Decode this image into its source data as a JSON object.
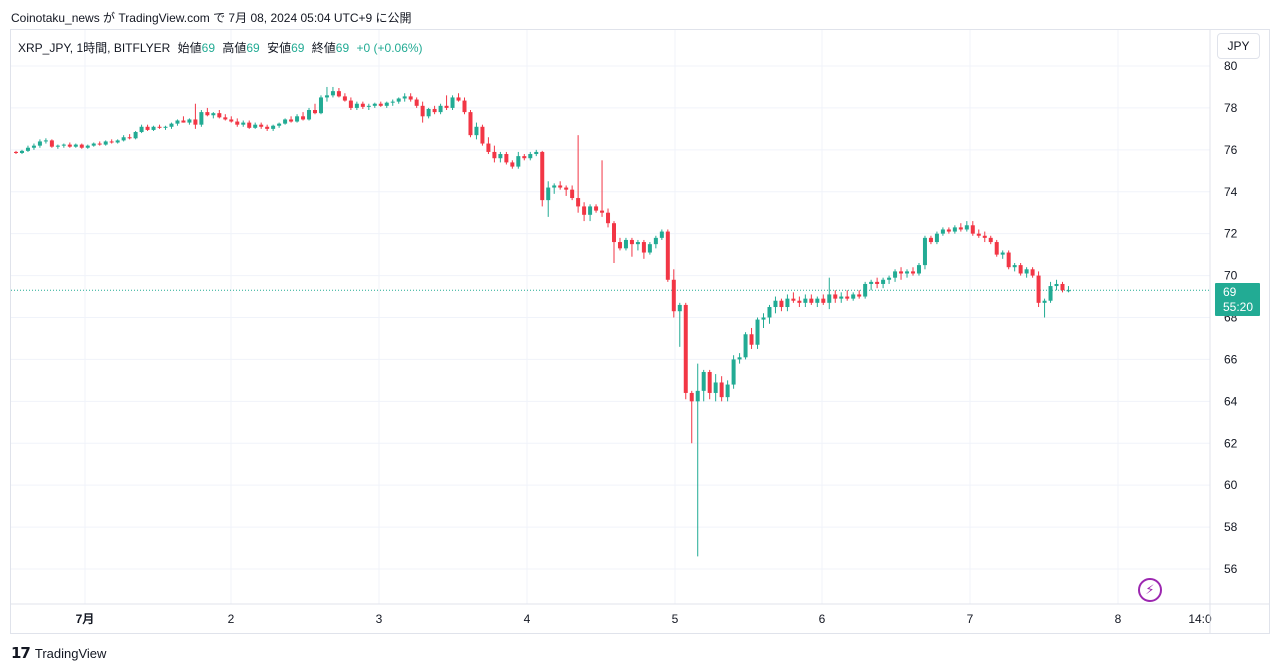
{
  "header": {
    "publish_line": "Coinotaku_news が TradingView.com で 7月 08, 2024 05:04 UTC+9 に公開"
  },
  "legend": {
    "symbol": "XRP_JPY, 1時間, BITFLYER",
    "open_label": "始値",
    "open_value": "69",
    "high_label": "高値",
    "high_value": "69",
    "low_label": "安値",
    "low_value": "69",
    "close_label": "終値",
    "close_value": "69",
    "change": "+0 (+0.06%)"
  },
  "toolbar": {
    "currency": "JPY"
  },
  "price_tag": {
    "price": "69",
    "countdown": "55:20"
  },
  "footer": {
    "brand": "TradingView"
  },
  "colors": {
    "up": "#22ab94",
    "down": "#f23645",
    "grid": "#f0f3fa",
    "price_line": "#22ab94"
  },
  "icons": {
    "bolt": "lightning-icon",
    "logo": "tradingview-logo-icon"
  },
  "chart_data": {
    "type": "candlestick",
    "ylim": [
      55,
      80
    ],
    "y_ticks": [
      "80",
      "78",
      "76",
      "74",
      "72",
      "70",
      "68",
      "66",
      "64",
      "62",
      "60",
      "58",
      "56"
    ],
    "x_tick_labels": [
      "7月",
      "2",
      "3",
      "4",
      "5",
      "6",
      "7",
      "8",
      "14:0"
    ],
    "current_price": 69.3,
    "grid": true,
    "series": [
      {
        "candles": [
          [
            75.9,
            75.95,
            75.8,
            75.85
          ],
          [
            75.85,
            76.0,
            75.8,
            75.95
          ],
          [
            75.95,
            76.2,
            75.9,
            76.1
          ],
          [
            76.1,
            76.3,
            76.0,
            76.2
          ],
          [
            76.2,
            76.5,
            76.1,
            76.4
          ],
          [
            76.4,
            76.55,
            76.3,
            76.45
          ],
          [
            76.45,
            76.5,
            76.1,
            76.15
          ],
          [
            76.15,
            76.25,
            76.05,
            76.2
          ],
          [
            76.2,
            76.3,
            76.1,
            76.25
          ],
          [
            76.25,
            76.35,
            76.1,
            76.15
          ],
          [
            76.15,
            76.3,
            76.1,
            76.25
          ],
          [
            76.25,
            76.3,
            76.05,
            76.1
          ],
          [
            76.1,
            76.25,
            76.05,
            76.2
          ],
          [
            76.2,
            76.35,
            76.15,
            76.3
          ],
          [
            76.3,
            76.4,
            76.2,
            76.25
          ],
          [
            76.25,
            76.45,
            76.2,
            76.4
          ],
          [
            76.4,
            76.5,
            76.3,
            76.35
          ],
          [
            76.35,
            76.5,
            76.3,
            76.45
          ],
          [
            76.45,
            76.7,
            76.4,
            76.6
          ],
          [
            76.6,
            76.75,
            76.5,
            76.55
          ],
          [
            76.55,
            76.9,
            76.5,
            76.85
          ],
          [
            76.85,
            77.2,
            76.8,
            77.1
          ],
          [
            77.1,
            77.2,
            76.9,
            76.95
          ],
          [
            76.95,
            77.15,
            76.9,
            77.1
          ],
          [
            77.1,
            77.2,
            77.0,
            77.05
          ],
          [
            77.05,
            77.15,
            76.95,
            77.1
          ],
          [
            77.1,
            77.3,
            77.0,
            77.25
          ],
          [
            77.25,
            77.45,
            77.15,
            77.4
          ],
          [
            77.4,
            77.6,
            77.3,
            77.3
          ],
          [
            77.3,
            77.5,
            77.2,
            77.45
          ],
          [
            77.45,
            78.2,
            77.0,
            77.2
          ],
          [
            77.2,
            77.9,
            77.1,
            77.8
          ],
          [
            77.8,
            78.0,
            77.6,
            77.65
          ],
          [
            77.65,
            77.8,
            77.5,
            77.75
          ],
          [
            77.75,
            77.9,
            77.5,
            77.55
          ],
          [
            77.55,
            77.7,
            77.4,
            77.45
          ],
          [
            77.45,
            77.6,
            77.3,
            77.35
          ],
          [
            77.35,
            77.5,
            77.1,
            77.2
          ],
          [
            77.2,
            77.4,
            77.1,
            77.3
          ],
          [
            77.3,
            77.4,
            77.0,
            77.05
          ],
          [
            77.05,
            77.3,
            77.0,
            77.2
          ],
          [
            77.2,
            77.3,
            77.0,
            77.1
          ],
          [
            77.1,
            77.2,
            76.9,
            77.0
          ],
          [
            77.0,
            77.2,
            76.9,
            77.15
          ],
          [
            77.15,
            77.3,
            77.05,
            77.25
          ],
          [
            77.25,
            77.5,
            77.2,
            77.45
          ],
          [
            77.45,
            77.6,
            77.3,
            77.35
          ],
          [
            77.35,
            77.7,
            77.3,
            77.6
          ],
          [
            77.6,
            77.8,
            77.4,
            77.45
          ],
          [
            77.45,
            78.0,
            77.4,
            77.9
          ],
          [
            77.9,
            78.2,
            77.7,
            77.75
          ],
          [
            77.75,
            78.6,
            77.7,
            78.5
          ],
          [
            78.5,
            79.0,
            78.3,
            78.6
          ],
          [
            78.6,
            79.0,
            78.5,
            78.8
          ],
          [
            78.8,
            78.95,
            78.5,
            78.55
          ],
          [
            78.55,
            78.7,
            78.3,
            78.35
          ],
          [
            78.35,
            78.5,
            77.9,
            78.0
          ],
          [
            78.0,
            78.3,
            77.9,
            78.2
          ],
          [
            78.2,
            78.3,
            77.95,
            78.05
          ],
          [
            78.05,
            78.2,
            77.9,
            78.1
          ],
          [
            78.1,
            78.25,
            78.0,
            78.2
          ],
          [
            78.2,
            78.3,
            78.05,
            78.1
          ],
          [
            78.1,
            78.3,
            78.0,
            78.25
          ],
          [
            78.25,
            78.4,
            78.1,
            78.3
          ],
          [
            78.3,
            78.5,
            78.2,
            78.45
          ],
          [
            78.45,
            78.7,
            78.3,
            78.55
          ],
          [
            78.55,
            78.7,
            78.3,
            78.4
          ],
          [
            78.4,
            78.5,
            78.0,
            78.1
          ],
          [
            78.1,
            78.3,
            77.3,
            77.6
          ],
          [
            77.6,
            78.0,
            77.5,
            77.95
          ],
          [
            77.95,
            78.1,
            77.7,
            77.8
          ],
          [
            77.8,
            78.2,
            77.7,
            78.1
          ],
          [
            78.1,
            78.6,
            77.9,
            78.0
          ],
          [
            78.0,
            78.6,
            77.9,
            78.5
          ],
          [
            78.5,
            78.7,
            78.3,
            78.35
          ],
          [
            78.35,
            78.5,
            77.7,
            77.8
          ],
          [
            77.8,
            77.9,
            76.6,
            76.7
          ],
          [
            76.7,
            77.3,
            76.5,
            77.1
          ],
          [
            77.1,
            77.2,
            76.2,
            76.3
          ],
          [
            76.3,
            76.6,
            75.8,
            75.9
          ],
          [
            75.9,
            76.2,
            75.4,
            75.6
          ],
          [
            75.6,
            75.9,
            75.4,
            75.8
          ],
          [
            75.8,
            75.9,
            75.3,
            75.4
          ],
          [
            75.4,
            75.5,
            75.1,
            75.2
          ],
          [
            75.2,
            75.9,
            75.1,
            75.7
          ],
          [
            75.7,
            75.8,
            75.5,
            75.6
          ],
          [
            75.6,
            75.9,
            75.5,
            75.8
          ],
          [
            75.8,
            76.0,
            75.7,
            75.9
          ],
          [
            75.9,
            75.95,
            73.3,
            73.6
          ],
          [
            73.6,
            74.5,
            72.8,
            74.2
          ],
          [
            74.2,
            74.4,
            73.9,
            74.3
          ],
          [
            74.3,
            74.5,
            74.1,
            74.2
          ],
          [
            74.2,
            74.3,
            73.8,
            74.1
          ],
          [
            74.1,
            74.3,
            73.6,
            73.7
          ],
          [
            73.7,
            76.7,
            73.0,
            73.3
          ],
          [
            73.3,
            73.5,
            72.6,
            72.9
          ],
          [
            72.9,
            73.4,
            72.6,
            73.3
          ],
          [
            73.3,
            73.4,
            73.0,
            73.1
          ],
          [
            73.1,
            75.5,
            72.8,
            73.0
          ],
          [
            73.0,
            73.2,
            72.3,
            72.5
          ],
          [
            72.5,
            72.6,
            70.6,
            71.6
          ],
          [
            71.6,
            71.8,
            71.2,
            71.3
          ],
          [
            71.3,
            71.8,
            71.2,
            71.7
          ],
          [
            71.7,
            71.8,
            70.9,
            71.5
          ],
          [
            71.5,
            71.7,
            71.2,
            71.6
          ],
          [
            71.6,
            71.7,
            70.8,
            71.1
          ],
          [
            71.1,
            71.6,
            71.0,
            71.5
          ],
          [
            71.5,
            71.9,
            71.3,
            71.8
          ],
          [
            71.8,
            72.2,
            71.7,
            72.1
          ],
          [
            72.1,
            72.2,
            69.7,
            69.8
          ],
          [
            69.8,
            70.3,
            68.0,
            68.3
          ],
          [
            68.3,
            68.7,
            66.6,
            68.6
          ],
          [
            68.6,
            68.7,
            64.1,
            64.4
          ],
          [
            64.4,
            64.5,
            62.0,
            64.0
          ],
          [
            64.0,
            65.8,
            56.6,
            64.5
          ],
          [
            64.5,
            65.5,
            64.0,
            65.4
          ],
          [
            65.4,
            65.5,
            64.1,
            64.4
          ],
          [
            64.4,
            65.3,
            64.0,
            64.9
          ],
          [
            64.9,
            65.2,
            64.0,
            64.2
          ],
          [
            64.2,
            65.0,
            64.0,
            64.8
          ],
          [
            64.8,
            66.2,
            64.6,
            66.0
          ],
          [
            66.0,
            66.3,
            65.8,
            66.1
          ],
          [
            66.1,
            67.3,
            66.0,
            67.2
          ],
          [
            67.2,
            67.5,
            66.5,
            66.7
          ],
          [
            66.7,
            68.0,
            66.5,
            67.9
          ],
          [
            67.9,
            68.2,
            67.5,
            68.0
          ],
          [
            68.0,
            68.6,
            67.7,
            68.5
          ],
          [
            68.5,
            69.0,
            68.2,
            68.8
          ],
          [
            68.8,
            68.9,
            68.3,
            68.5
          ],
          [
            68.5,
            69.1,
            68.3,
            68.9
          ],
          [
            68.9,
            69.2,
            68.7,
            68.8
          ],
          [
            68.8,
            69.0,
            68.5,
            68.7
          ],
          [
            68.7,
            69.1,
            68.5,
            68.9
          ],
          [
            68.9,
            69.1,
            68.6,
            68.7
          ],
          [
            68.7,
            69.0,
            68.5,
            68.9
          ],
          [
            68.9,
            69.1,
            68.6,
            68.7
          ],
          [
            68.7,
            69.9,
            68.4,
            69.1
          ],
          [
            69.1,
            69.3,
            68.7,
            68.9
          ],
          [
            68.9,
            69.2,
            68.7,
            69.0
          ],
          [
            69.0,
            69.3,
            68.8,
            68.9
          ],
          [
            68.9,
            69.2,
            68.8,
            69.1
          ],
          [
            69.1,
            69.3,
            68.9,
            69.0
          ],
          [
            69.0,
            69.7,
            68.9,
            69.6
          ],
          [
            69.6,
            69.8,
            69.3,
            69.7
          ],
          [
            69.7,
            69.9,
            69.4,
            69.6
          ],
          [
            69.6,
            69.9,
            69.4,
            69.8
          ],
          [
            69.8,
            70.0,
            69.6,
            69.9
          ],
          [
            69.9,
            70.3,
            69.7,
            70.2
          ],
          [
            70.2,
            70.4,
            69.8,
            70.1
          ],
          [
            70.1,
            70.3,
            69.9,
            70.2
          ],
          [
            70.2,
            70.4,
            70.0,
            70.1
          ],
          [
            70.1,
            70.6,
            70.0,
            70.5
          ],
          [
            70.5,
            71.9,
            70.3,
            71.8
          ],
          [
            71.8,
            71.9,
            71.5,
            71.6
          ],
          [
            71.6,
            72.1,
            71.5,
            72.0
          ],
          [
            72.0,
            72.3,
            71.9,
            72.2
          ],
          [
            72.2,
            72.3,
            72.0,
            72.1
          ],
          [
            72.1,
            72.4,
            72.0,
            72.3
          ],
          [
            72.3,
            72.5,
            72.1,
            72.2
          ],
          [
            72.2,
            72.6,
            72.1,
            72.4
          ],
          [
            72.4,
            72.6,
            71.9,
            72.0
          ],
          [
            72.0,
            72.2,
            71.8,
            71.9
          ],
          [
            71.9,
            72.1,
            71.6,
            71.8
          ],
          [
            71.8,
            71.9,
            71.5,
            71.6
          ],
          [
            71.6,
            71.7,
            70.9,
            71.0
          ],
          [
            71.0,
            71.2,
            70.8,
            71.1
          ],
          [
            71.1,
            71.2,
            70.3,
            70.4
          ],
          [
            70.4,
            70.6,
            70.2,
            70.5
          ],
          [
            70.5,
            70.6,
            70.0,
            70.1
          ],
          [
            70.1,
            70.4,
            69.9,
            70.3
          ],
          [
            70.3,
            70.4,
            69.9,
            70.0
          ],
          [
            70.0,
            70.2,
            68.5,
            68.7
          ],
          [
            68.7,
            68.9,
            68.0,
            68.8
          ],
          [
            68.8,
            69.7,
            68.7,
            69.5
          ],
          [
            69.5,
            69.8,
            69.3,
            69.6
          ],
          [
            69.6,
            69.7,
            69.2,
            69.3
          ],
          [
            69.3,
            69.5,
            69.2,
            69.3
          ]
        ]
      }
    ]
  }
}
